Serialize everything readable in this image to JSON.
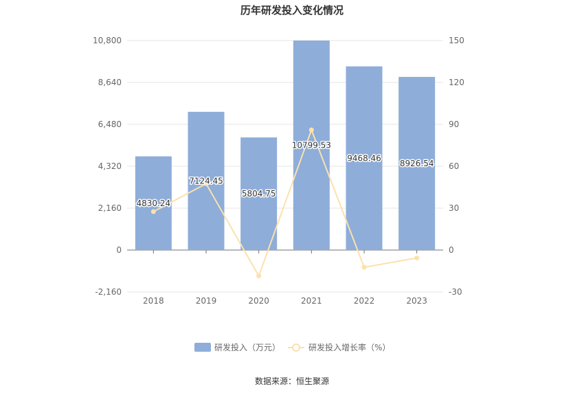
{
  "chart_data": {
    "type": "bar",
    "title": "历年研发投入变化情况",
    "categories": [
      "2018",
      "2019",
      "2020",
      "2021",
      "2022",
      "2023"
    ],
    "series": [
      {
        "name": "研发投入（万元）",
        "type": "bar",
        "axis": "left",
        "values": [
          4830.24,
          7124.45,
          5804.75,
          10799.53,
          9468.46,
          8926.54
        ],
        "labels": [
          "4830.24",
          "7124.45",
          "5804.75",
          "10799.53",
          "9468.46",
          "8926.54"
        ],
        "color": "#8eadd9"
      },
      {
        "name": "研发投入增长率（%）",
        "type": "line",
        "axis": "right",
        "values": [
          27.5,
          47.5,
          -18.5,
          86.0,
          -12.3,
          -5.7
        ],
        "color": "#fbe1ad"
      }
    ],
    "y_left": {
      "ylim": [
        -2160,
        10800
      ],
      "ticks": [
        -2160,
        0,
        2160,
        4320,
        6480,
        8640,
        10800
      ],
      "tick_labels": [
        "-2,160",
        "0",
        "2,160",
        "4,320",
        "6,480",
        "8,640",
        "10,800"
      ]
    },
    "y_right": {
      "ylim": [
        -30,
        150
      ],
      "ticks": [
        -30,
        0,
        30,
        60,
        90,
        120,
        150
      ],
      "tick_labels": [
        "-30",
        "0",
        "30",
        "60",
        "90",
        "120",
        "150"
      ]
    },
    "grid": true,
    "legend_position": "bottom"
  },
  "source": "数据来源：恒生聚源"
}
